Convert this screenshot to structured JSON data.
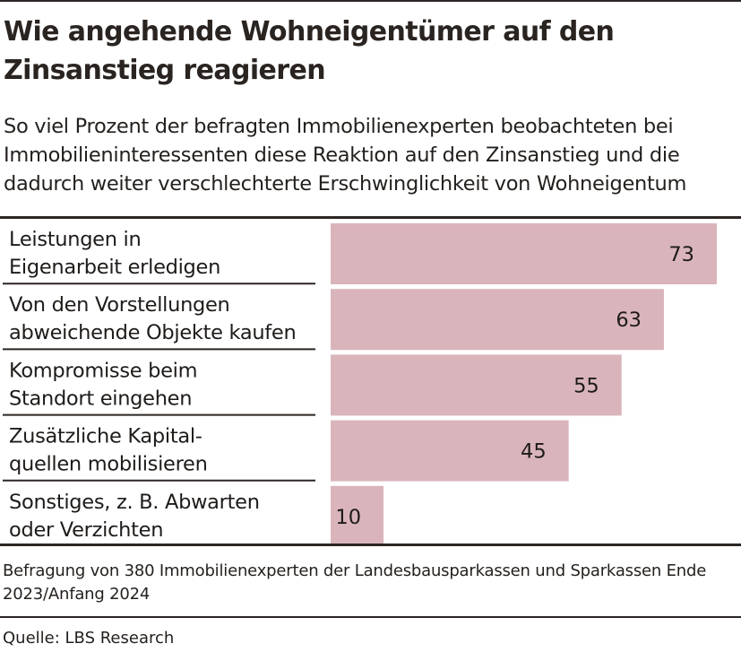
{
  "title": "Wie angehende Wohneigentümer auf den Zinsanstieg reagieren",
  "subtitle": "So viel Prozent der befragten Immobilienexperten beobachteten bei Immobilieninteressenten diese Reaktion auf den Zinsanstieg und die dadurch weiter verschlechterte Erschwinglichkeit von Wohneigentum",
  "note": "Befragung von 380 Immobilienexperten der Landesbausparkassen und Sparkassen Ende 2023/Anfang 2024",
  "source": "Quelle: LBS Research",
  "colors": {
    "bar": "#d9b5bb",
    "rule": "#2b2623",
    "text": "#1e1b19"
  },
  "chart_data": {
    "type": "bar",
    "orientation": "horizontal",
    "categories": [
      [
        "Leistungen in",
        "Eigenarbeit erledigen"
      ],
      [
        "Von den Vorstellungen",
        "abweichende Objekte kaufen"
      ],
      [
        "Kompromisse beim",
        "Standort eingehen"
      ],
      [
        "Zusätzliche Kapital-",
        "quellen mobilisieren"
      ],
      [
        "Sonstiges, z. B. Abwarten",
        "oder Verzichten"
      ]
    ],
    "values": [
      73,
      63,
      55,
      45,
      10
    ],
    "value_labels": [
      "73",
      "63",
      "55",
      "45",
      "10"
    ],
    "xlim": [
      0,
      73
    ],
    "grid": false,
    "legend": "none"
  }
}
